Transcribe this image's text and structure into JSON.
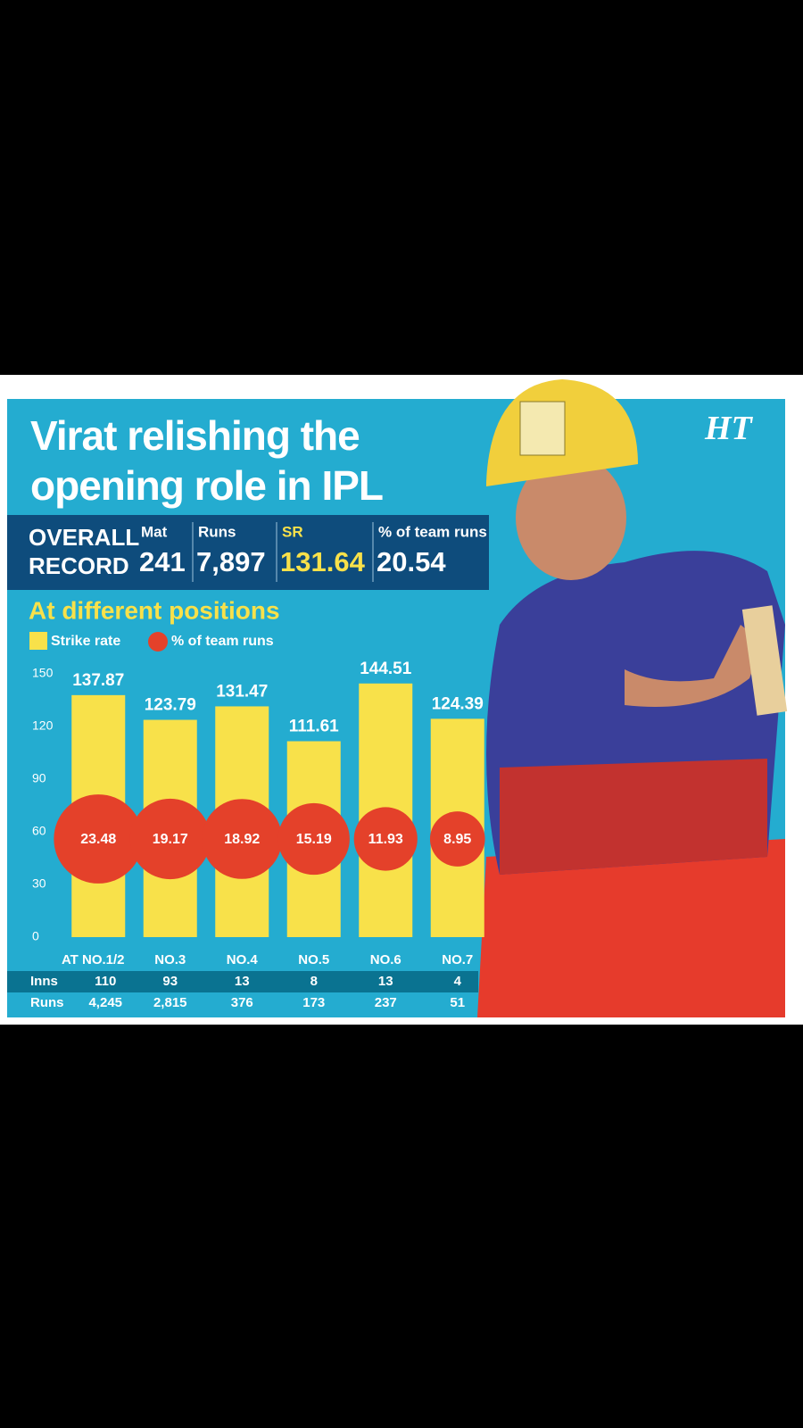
{
  "chart_data": {
    "type": "bar",
    "title": "Virat relishing the opening role in IPL",
    "logo": "HT",
    "overall": {
      "label": "OVERALL RECORD",
      "stats": [
        {
          "name": "Mat",
          "value": 241
        },
        {
          "name": "Runs",
          "value": {
            "value": 7897,
            "label": "7,897"
          }
        },
        {
          "name": "SR",
          "value": 131.64
        },
        {
          "name": "% of team runs",
          "value": 20.54
        }
      ]
    },
    "subtitle": "At different positions",
    "categories": [
      "AT NO.1/2",
      "NO.3",
      "NO.4",
      "NO.5",
      "NO.6",
      "NO.7"
    ],
    "series": [
      {
        "name": "Strike rate",
        "color": "#f8e14a",
        "values": [
          137.87,
          123.79,
          131.47,
          111.61,
          144.51,
          124.39
        ]
      },
      {
        "name": "% of team runs",
        "color": "#e4412a",
        "values": [
          23.48,
          19.17,
          18.92,
          15.19,
          11.93,
          8.95
        ]
      }
    ],
    "ylim": [
      0,
      150
    ],
    "yticks": [
      0,
      30,
      60,
      90,
      120,
      150
    ],
    "table": {
      "rows": [
        {
          "label": "Inns",
          "values": [
            110,
            93,
            13,
            8,
            13,
            4
          ]
        },
        {
          "label": "Runs",
          "values": [
            4245,
            2815,
            376,
            173,
            237,
            51
          ],
          "value_labels": [
            "4,245",
            "2,815",
            "376",
            "173",
            "237",
            "51"
          ]
        }
      ]
    }
  }
}
